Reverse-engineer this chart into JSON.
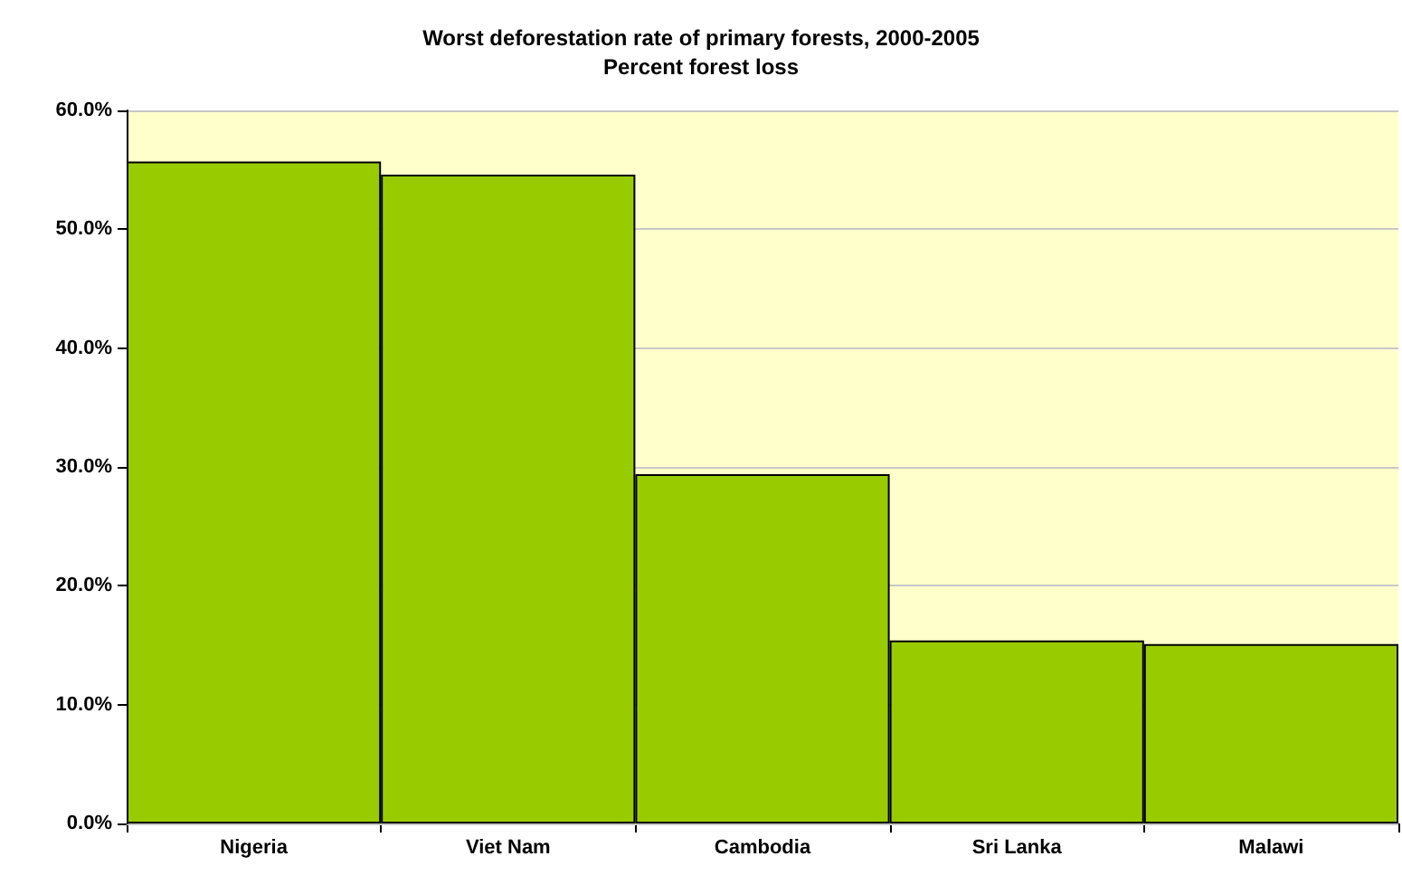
{
  "chart_data": {
    "type": "bar",
    "title": "Worst deforestation rate of primary forests, 2000-2005",
    "subtitle": "Percent forest loss",
    "categories": [
      "Nigeria",
      "Viet Nam",
      "Cambodia",
      "Sri Lanka",
      "Malawi"
    ],
    "values": [
      55.7,
      54.6,
      29.4,
      15.4,
      15.1
    ],
    "color": "#99cc00",
    "ylim": [
      0,
      60
    ],
    "yticks": [
      {
        "value": 0,
        "label": "0.0%"
      },
      {
        "value": 10,
        "label": "10.0%"
      },
      {
        "value": 20,
        "label": "20.0%"
      },
      {
        "value": 30,
        "label": "30.0%"
      },
      {
        "value": 40,
        "label": "40.0%"
      },
      {
        "value": 50,
        "label": "50.0%"
      },
      {
        "value": 60,
        "label": "60.0%"
      }
    ],
    "bands": [
      {
        "axis": "y",
        "from": 0,
        "to": 60,
        "color": "#ffffcc"
      }
    ],
    "grid": "y"
  }
}
